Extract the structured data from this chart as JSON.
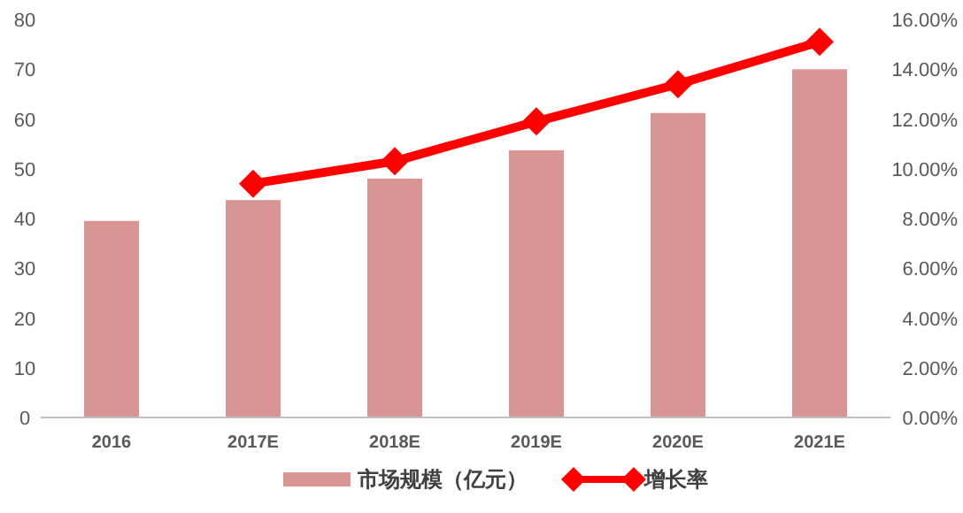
{
  "chart_data": {
    "type": "bar",
    "categories": [
      "2016",
      "2017E",
      "2018E",
      "2019E",
      "2020E",
      "2021E"
    ],
    "series": [
      {
        "name": "市场规模（亿元）",
        "color": "#d99594",
        "values": [
          39.5,
          43.7,
          48,
          53.7,
          61.2,
          70
        ]
      },
      {
        "name": "增长率",
        "type": "line",
        "axis": "y2",
        "color": "#ff0000",
        "marker": "diamond",
        "values": [
          null,
          9.4,
          10.3,
          11.9,
          13.4,
          15.1
        ]
      }
    ],
    "ylim": [
      0,
      80
    ],
    "yticks": [
      0,
      10,
      20,
      30,
      40,
      50,
      60,
      70,
      80
    ],
    "y2lim": [
      0,
      16
    ],
    "y2ticks": [
      {
        "value": 0,
        "label": "0.00%"
      },
      {
        "value": 2,
        "label": "2.00%"
      },
      {
        "value": 4,
        "label": "4.00%"
      },
      {
        "value": 6,
        "label": "6.00%"
      },
      {
        "value": 8,
        "label": "8.00%"
      },
      {
        "value": 10,
        "label": "10.00%"
      },
      {
        "value": 12,
        "label": "12.00%"
      },
      {
        "value": 14,
        "label": "14.00%"
      },
      {
        "value": 16,
        "label": "16.00%"
      }
    ],
    "grid": false,
    "legend": "bottom"
  }
}
